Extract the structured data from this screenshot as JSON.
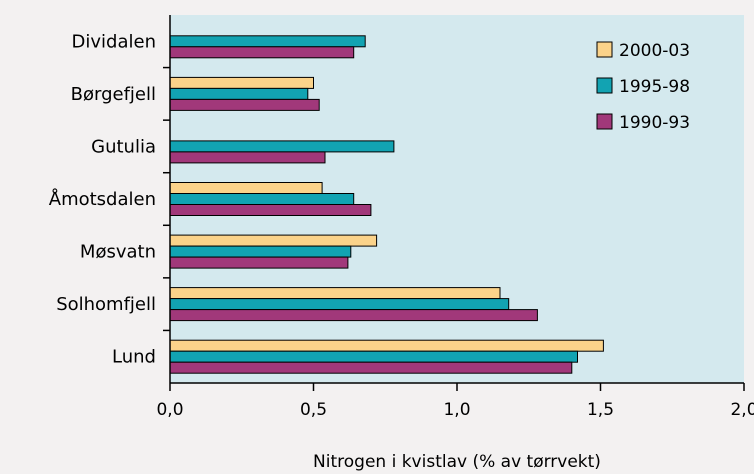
{
  "chart_data": {
    "type": "bar",
    "orientation": "horizontal",
    "categories": [
      "Dividalen",
      "Børgefjell",
      "Gutulia",
      "Åmotsdalen",
      "Møsvatn",
      "Solhomfjell",
      "Lund"
    ],
    "series": [
      {
        "name": "2000-03",
        "color": "#fbd38a",
        "values": [
          null,
          0.5,
          null,
          0.53,
          0.72,
          1.15,
          1.51
        ]
      },
      {
        "name": "1995-98",
        "color": "#12a3b2",
        "values": [
          0.68,
          0.48,
          0.78,
          0.64,
          0.63,
          1.18,
          1.42
        ]
      },
      {
        "name": "1990-93",
        "color": "#a1387a",
        "values": [
          0.64,
          0.52,
          0.54,
          0.7,
          0.62,
          1.28,
          1.4
        ]
      }
    ],
    "xlabel": "Nitrogen i kvistlav (% av tørrvekt)",
    "xlim": [
      0,
      2.0
    ],
    "xticks": [
      "0,0",
      "0,5",
      "1,0",
      "1,5",
      "2,0"
    ],
    "plot_background": "#d4e9ee",
    "grid": false,
    "legend_position": "top-right"
  }
}
